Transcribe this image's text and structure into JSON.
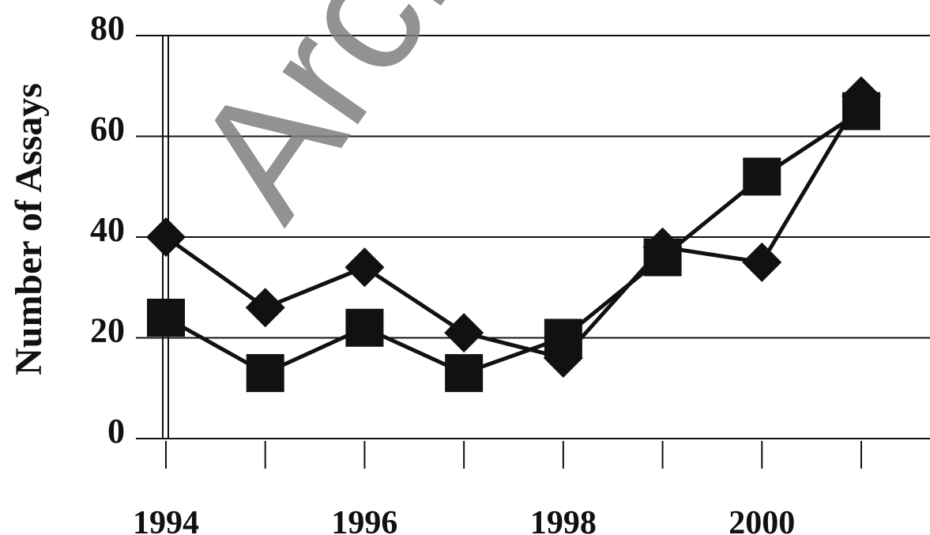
{
  "watermark": "Arch",
  "chart_data": {
    "type": "line",
    "title": "",
    "xlabel": "",
    "ylabel": "Number of Assays",
    "x": [
      1994,
      1995,
      1996,
      1997,
      1998,
      1999,
      2000,
      2001
    ],
    "x_tick_labels": [
      "1994",
      "1996",
      "1998",
      "2000"
    ],
    "x_tick_label_values": [
      1994,
      1996,
      1998,
      2000
    ],
    "y_ticks": [
      0,
      20,
      40,
      60,
      80
    ],
    "ylim": [
      0,
      80
    ],
    "xlim": [
      1994,
      2001
    ],
    "grid": true,
    "series": [
      {
        "marker": "diamond",
        "values": [
          40,
          26,
          34,
          21,
          16,
          38,
          35,
          68
        ]
      },
      {
        "marker": "square",
        "values": [
          24,
          13,
          22,
          13,
          20,
          36,
          52,
          65
        ]
      }
    ]
  }
}
